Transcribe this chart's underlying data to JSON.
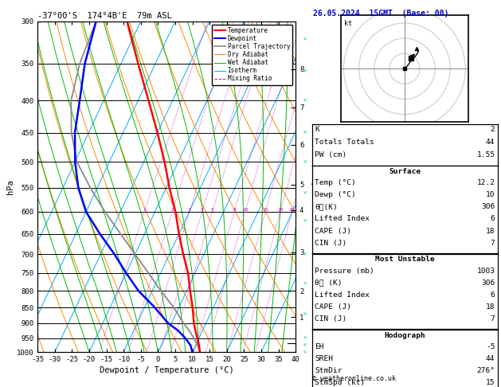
{
  "title_left": "-37°00'S  174°4B'E  79m ASL",
  "title_right": "26.05.2024  15GMT  (Base: 00)",
  "xlabel": "Dewpoint / Temperature (°C)",
  "ylabel_left": "hPa",
  "pressure_levels": [
    300,
    350,
    400,
    450,
    500,
    550,
    600,
    650,
    700,
    750,
    800,
    850,
    900,
    950,
    1000
  ],
  "temp_min": -35,
  "temp_max": 40,
  "mixing_ratio_lines": [
    1,
    2,
    3,
    4,
    5,
    8,
    10,
    15,
    20,
    25
  ],
  "km_labels": [
    8,
    7,
    6,
    5,
    4,
    3,
    2,
    1
  ],
  "km_pressures": [
    357,
    410,
    470,
    543,
    596,
    695,
    800,
    880
  ],
  "lcl_pressure": 968,
  "legend_items": [
    {
      "label": "Temperature",
      "color": "#ff0000",
      "style": "-",
      "lw": 1.5
    },
    {
      "label": "Dewpoint",
      "color": "#0000ff",
      "style": "-",
      "lw": 1.5
    },
    {
      "label": "Parcel Trajectory",
      "color": "#888888",
      "style": "-",
      "lw": 1.2
    },
    {
      "label": "Dry Adiabat",
      "color": "#ff8800",
      "style": "-",
      "lw": 0.7
    },
    {
      "label": "Wet Adiabat",
      "color": "#00bb00",
      "style": "-",
      "lw": 0.7
    },
    {
      "label": "Isotherm",
      "color": "#00aaff",
      "style": "-",
      "lw": 0.7
    },
    {
      "label": "Mixing Ratio",
      "color": "#cc00cc",
      "style": "--",
      "lw": 0.7
    }
  ],
  "temperature_profile": {
    "pressure": [
      1000,
      975,
      950,
      925,
      900,
      850,
      800,
      750,
      700,
      650,
      600,
      550,
      500,
      450,
      400,
      350,
      300
    ],
    "temp": [
      12.2,
      11.0,
      9.5,
      8.0,
      6.5,
      4.0,
      1.0,
      -2.0,
      -6.0,
      -10.0,
      -14.0,
      -19.0,
      -24.0,
      -30.0,
      -37.0,
      -45.0,
      -54.0
    ]
  },
  "dewpoint_profile": {
    "pressure": [
      1000,
      975,
      950,
      925,
      900,
      850,
      800,
      750,
      700,
      650,
      600,
      550,
      500,
      450,
      400,
      350,
      300
    ],
    "temp": [
      10.0,
      8.5,
      6.0,
      3.0,
      -1.0,
      -7.0,
      -14.0,
      -20.0,
      -26.0,
      -33.0,
      -40.0,
      -45.5,
      -50.0,
      -54.0,
      -57.0,
      -60.5,
      -63.0
    ]
  },
  "parcel_profile": {
    "pressure": [
      1000,
      975,
      950,
      925,
      900,
      850,
      800,
      750,
      700,
      650,
      600,
      550,
      500,
      450,
      400,
      350,
      300
    ],
    "temp": [
      12.2,
      10.5,
      8.5,
      6.2,
      3.5,
      -1.5,
      -7.5,
      -13.5,
      -20.0,
      -27.0,
      -34.5,
      -42.0,
      -49.5,
      -55.0,
      -59.5,
      -62.0,
      -63.0
    ]
  },
  "stats": {
    "K": 2,
    "Totals_Totals": 44,
    "PW_cm": 1.55,
    "Surface_Temp": 12.2,
    "Surface_Dewp": 10,
    "Surface_theta_e": 306,
    "Lifted_Index": 6,
    "CAPE": 18,
    "CIN": 7,
    "MU_Pressure": 1003,
    "MU_theta_e": 306,
    "MU_LI": 6,
    "MU_CAPE": 18,
    "MU_CIN": 7,
    "Hodo_EH": -5,
    "SREH": 44,
    "StmDir": 276,
    "StmSpd": 15
  },
  "background_color": "#ffffff",
  "isotherm_color": "#00aaff",
  "dryadiabat_color": "#ff8800",
  "wetadiabat_color": "#00bb00",
  "mixingratio_color": "#cc00cc",
  "temp_color": "#ff0000",
  "dewp_color": "#0000ff",
  "parcel_color": "#888888",
  "skew_factor": 45
}
